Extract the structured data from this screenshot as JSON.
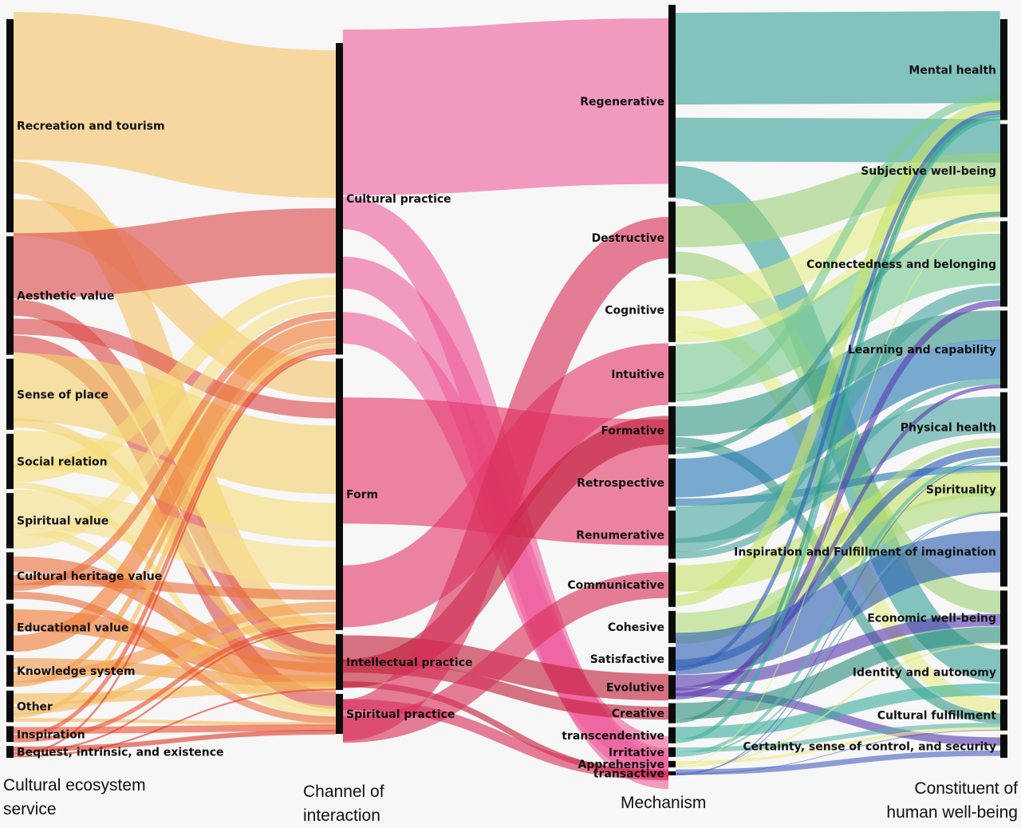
{
  "chart_data": {
    "type": "sankey",
    "stage_titles": [
      "Cultural ecosystem service",
      "Channel of interaction",
      "Mechanism",
      "Constituent of human well-being"
    ],
    "stages": [
      {
        "name": "Cultural ecosystem service",
        "nodes": [
          {
            "label": "Recreation and tourism",
            "value": 27
          },
          {
            "label": "Aesthetic value",
            "value": 15
          },
          {
            "label": "Sense of place",
            "value": 9
          },
          {
            "label": "Social relation",
            "value": 7
          },
          {
            "label": "Spiritual value",
            "value": 7
          },
          {
            "label": "Cultural heritage value",
            "value": 6
          },
          {
            "label": "Educational value",
            "value": 6
          },
          {
            "label": "Knowledge system",
            "value": 4
          },
          {
            "label": "Other",
            "value": 4
          },
          {
            "label": "Inspiration",
            "value": 2
          },
          {
            "label": "Bequest, intrinsic, and existence",
            "value": 1.5
          }
        ]
      },
      {
        "name": "Channel of interaction",
        "nodes": [
          {
            "label": "Cultural practice",
            "value": 39
          },
          {
            "label": "Form",
            "value": 34
          },
          {
            "label": "Intellectual practice",
            "value": 7
          },
          {
            "label": "Spiritual practice",
            "value": 5
          }
        ]
      },
      {
        "name": "Mechanism",
        "nodes": [
          {
            "label": "Regenerative",
            "value": 24
          },
          {
            "label": "Destructive",
            "value": 9
          },
          {
            "label": "Cognitive",
            "value": 8
          },
          {
            "label": "Intuitive",
            "value": 7
          },
          {
            "label": "Formative",
            "value": 6
          },
          {
            "label": "Retrospective",
            "value": 6
          },
          {
            "label": "Renumerative",
            "value": 6
          },
          {
            "label": "Communicative",
            "value": 5.5
          },
          {
            "label": "Cohesive",
            "value": 4
          },
          {
            "label": "Satisfactive",
            "value": 3
          },
          {
            "label": "Evolutive",
            "value": 3
          },
          {
            "label": "Creative",
            "value": 2.5
          },
          {
            "label": "transcendentive",
            "value": 2
          },
          {
            "label": "Irritative",
            "value": 1.2
          },
          {
            "label": "Apprehensive",
            "value": 0.8
          },
          {
            "label": "transactive",
            "value": 0.5
          }
        ]
      },
      {
        "name": "Constituent of human well-being",
        "nodes": [
          {
            "label": "Mental health",
            "value": 13
          },
          {
            "label": "Subjective well-being",
            "value": 12
          },
          {
            "label": "Connectedness and belonging",
            "value": 11
          },
          {
            "label": "Learning and capability",
            "value": 10
          },
          {
            "label": "Physical health",
            "value": 9
          },
          {
            "label": "Spirituality",
            "value": 6
          },
          {
            "label": "Inspiration and Fulfillment of imagination",
            "value": 9
          },
          {
            "label": "Economic well-being",
            "value": 7
          },
          {
            "label": "Identity and autonomy",
            "value": 6
          },
          {
            "label": "Cultural fulfillment",
            "value": 4
          },
          {
            "label": "Certainty, sense of control, and security",
            "value": 3
          }
        ]
      }
    ],
    "colors": {
      "stage1": [
        "#f5c36b",
        "#dd4b4b",
        "#f3d16e",
        "#f6dd7a",
        "#f6e08a",
        "#e9713f",
        "#ef7a33",
        "#f19a4a",
        "#f5b95a",
        "#e8512f",
        "#dd3a2c"
      ],
      "stage2": [
        "#ef5f9c",
        "#e33a6a",
        "#c21f3a",
        "#d9305a"
      ],
      "stage3": [
        "#3aa39a",
        "#9ed07a",
        "#e6ef8a",
        "#7ccc94",
        "#3a9a8a",
        "#2a7ab8",
        "#4aa6a0",
        "#c7e36a",
        "#aedb7a",
        "#2f5fb3",
        "#5a3db0",
        "#2e8f80",
        "#3cb0a0",
        "#5ab8a8",
        "#e8ec80",
        "#4a62c0"
      ],
      "bar": "#0b0b0b"
    }
  }
}
